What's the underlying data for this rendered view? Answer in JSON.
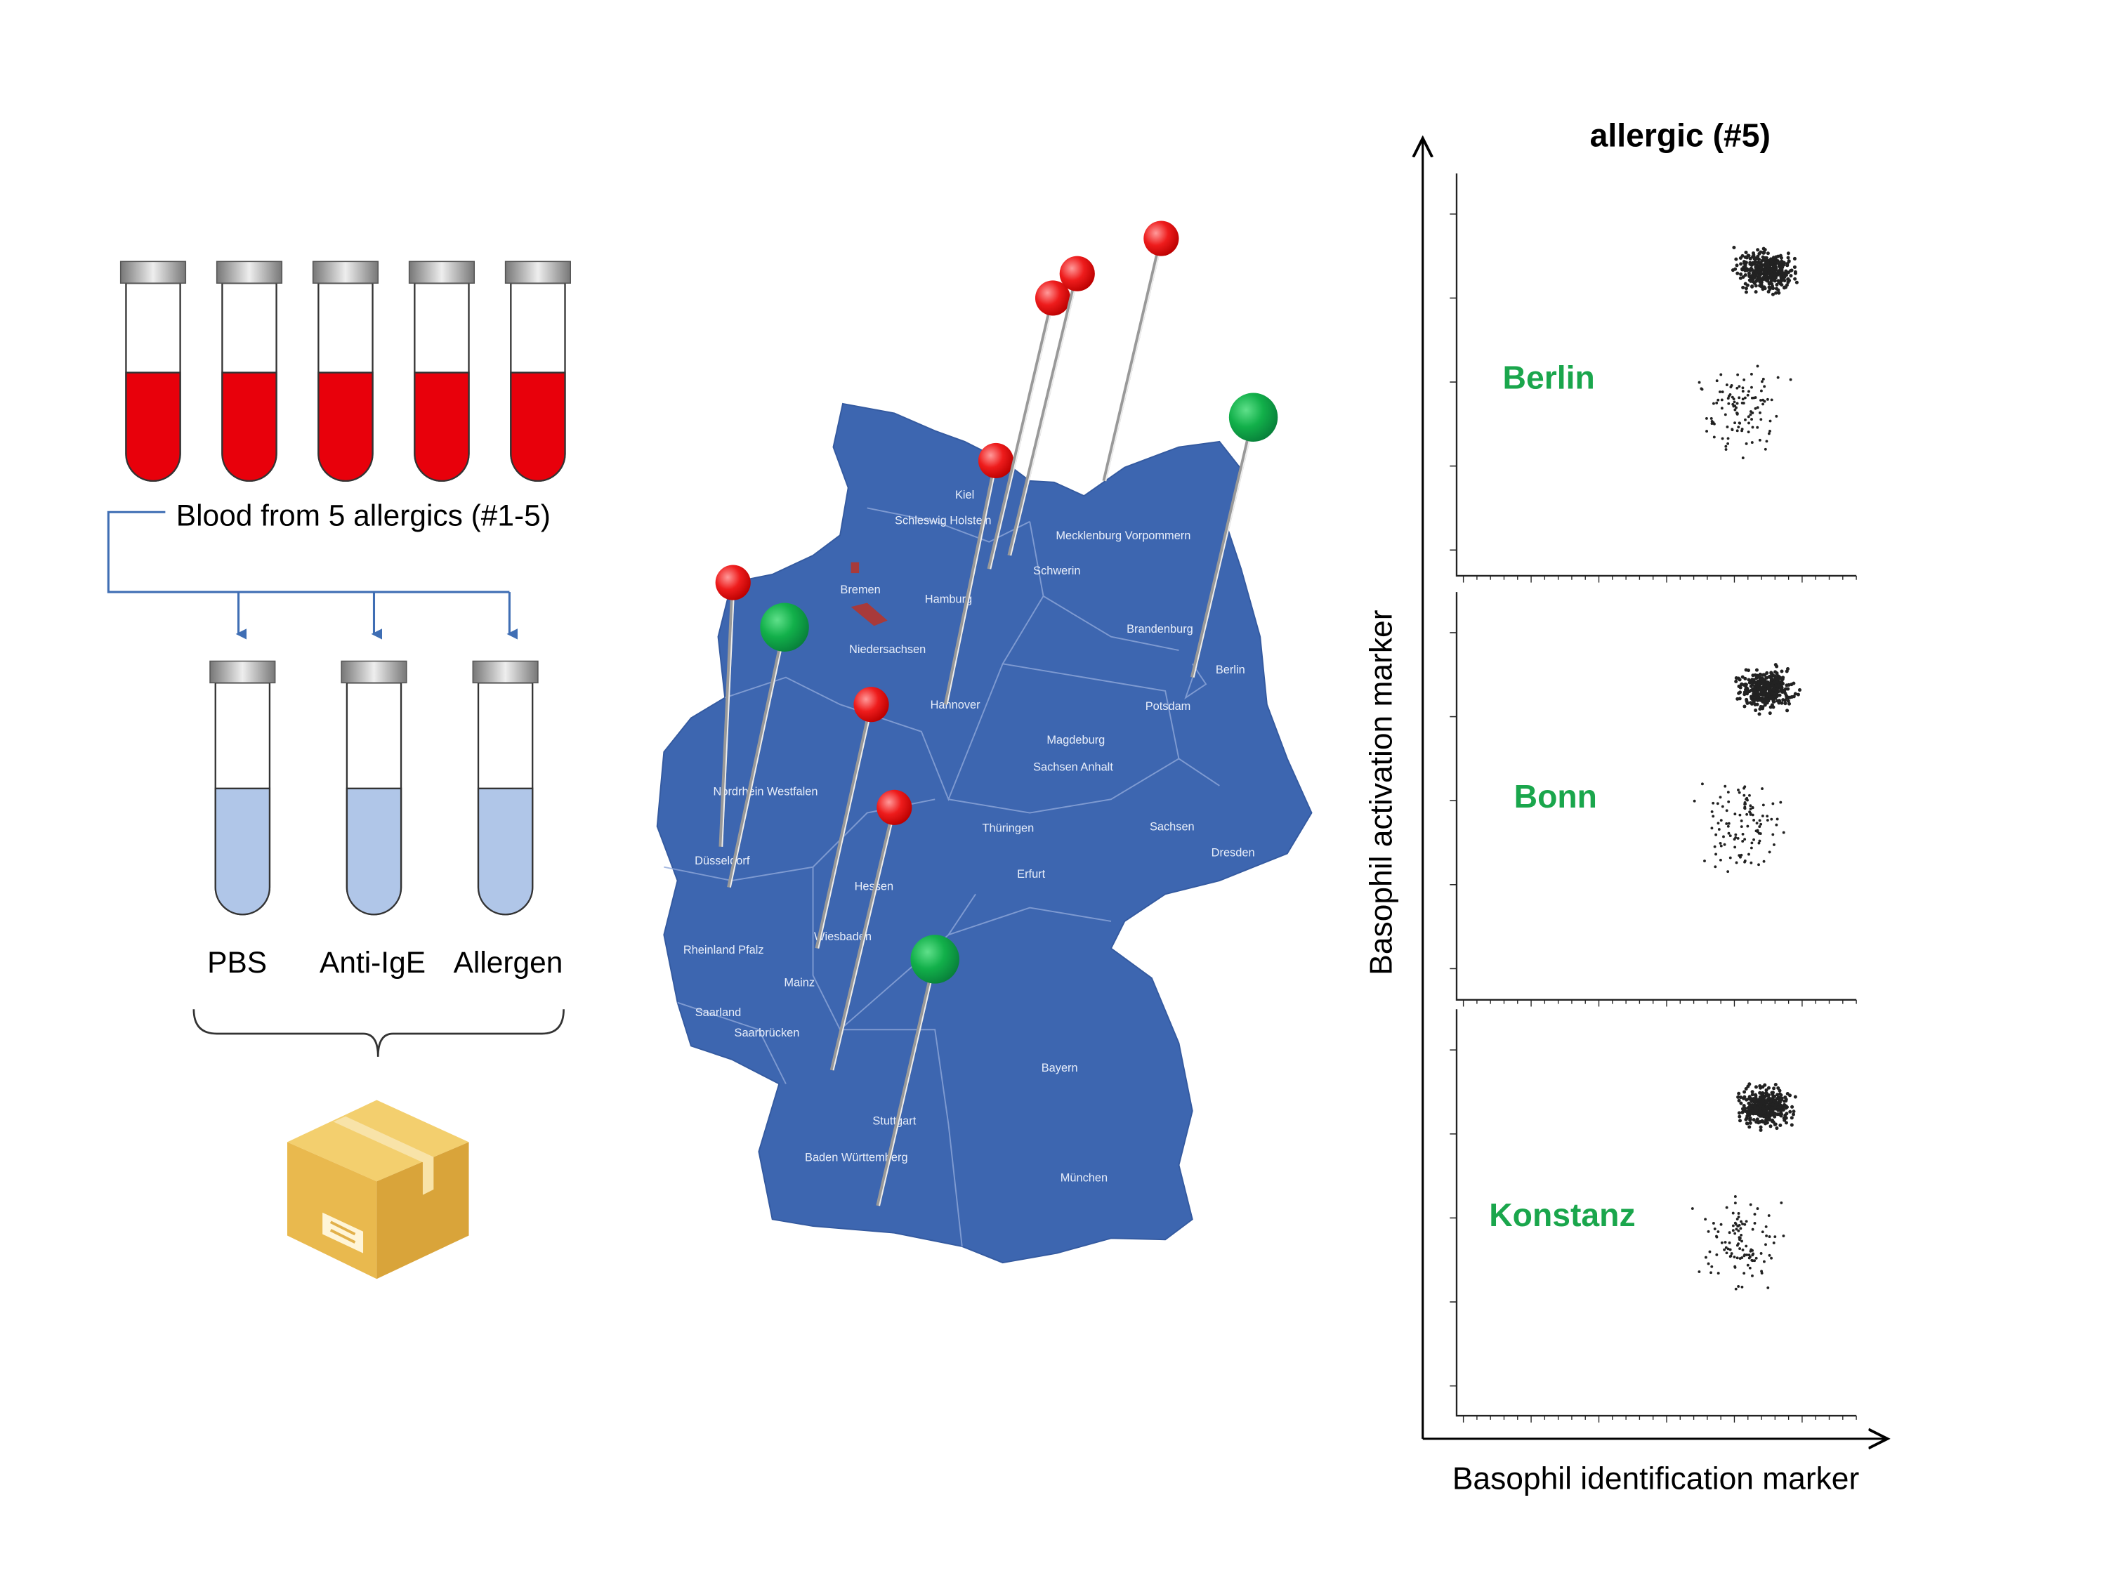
{
  "samples": {
    "label": "Blood from 5 allergics (#1-5)"
  },
  "conditions": [
    "PBS",
    "Anti-IgE",
    "Allergen"
  ],
  "map": {
    "labels": [
      "Kiel",
      "Schleswig Holstein",
      "Mecklenburg Vorpommern",
      "Schwerin",
      "Hamburg",
      "Bremen",
      "Niedersachsen",
      "Brandenburg",
      "Berlin",
      "Potsdam",
      "Hannover",
      "Magdeburg",
      "Sachsen Anhalt",
      "Nordrhein Westfalen",
      "Düsseldorf",
      "Sachsen",
      "Dresden",
      "Thüringen",
      "Erfurt",
      "Hessen",
      "Wiesbaden",
      "Mainz",
      "Rheinland Pfalz",
      "Saarland",
      "Saarbrücken",
      "Bayern",
      "Stuttgart",
      "Baden Württemberg",
      "München"
    ]
  },
  "panel": {
    "title": "allergic (#5)",
    "sites": [
      "Berlin",
      "Bonn",
      "Konstanz"
    ],
    "y_label": "Basophil activation marker",
    "x_label": "Basophil identification marker"
  }
}
